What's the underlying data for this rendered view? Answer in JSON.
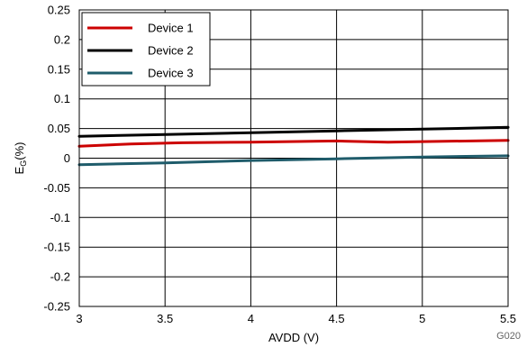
{
  "chart_data": {
    "type": "line",
    "xlabel": "AVDD (V)",
    "ylabel_main": "E",
    "ylabel_sub": "G",
    "ylabel_suffix": "(%)",
    "figure_code": "G020",
    "xlim": [
      3,
      5.5
    ],
    "ylim": [
      -0.25,
      0.25
    ],
    "x_ticks": [
      3,
      3.5,
      4,
      4.5,
      5,
      5.5
    ],
    "x_tick_labels": [
      "3",
      "3.5",
      "4",
      "4.5",
      "5",
      "5.5"
    ],
    "y_ticks": [
      0.25,
      0.2,
      0.15,
      0.1,
      0.05,
      0,
      -0.05,
      -0.1,
      -0.15,
      -0.2,
      -0.25
    ],
    "y_tick_labels": [
      "0.25",
      "0.2",
      "0.15",
      "0.1",
      "0.05",
      "0",
      "-0.05",
      "-0.1",
      "-0.15",
      "-0.2",
      "-0.25"
    ],
    "grid": true,
    "legend_position": "top-left",
    "series": [
      {
        "name": "Device 1",
        "color": "#cc0000",
        "x": [
          3.0,
          3.3,
          3.6,
          4.0,
          4.5,
          4.8,
          5.0,
          5.5
        ],
        "y": [
          0.02,
          0.024,
          0.026,
          0.027,
          0.029,
          0.027,
          0.028,
          0.03
        ]
      },
      {
        "name": "Device 2",
        "color": "#000000",
        "x": [
          3.0,
          3.5,
          4.0,
          4.5,
          5.0,
          5.5
        ],
        "y": [
          0.037,
          0.04,
          0.043,
          0.046,
          0.049,
          0.052
        ]
      },
      {
        "name": "Device 3",
        "color": "#1f5c6b",
        "x": [
          3.0,
          3.5,
          4.0,
          4.5,
          5.0,
          5.5
        ],
        "y": [
          -0.011,
          -0.008,
          -0.004,
          -0.001,
          0.002,
          0.004
        ]
      }
    ]
  }
}
